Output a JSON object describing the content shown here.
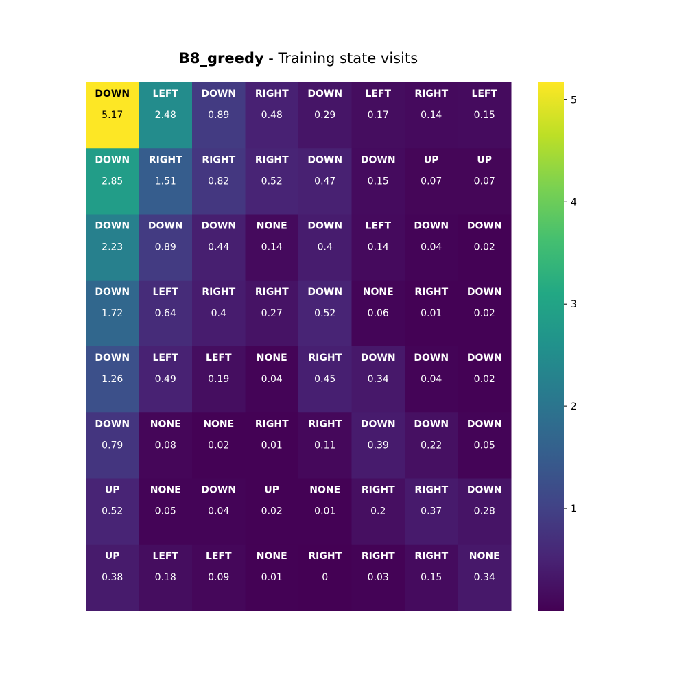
{
  "chart_data": {
    "type": "heatmap",
    "title_bold": "B8_greedy",
    "title_rest": " - Training state visits",
    "rows": 8,
    "cols": 8,
    "values": [
      [
        5.17,
        2.48,
        0.89,
        0.48,
        0.29,
        0.17,
        0.14,
        0.15
      ],
      [
        2.85,
        1.51,
        0.82,
        0.52,
        0.47,
        0.15,
        0.07,
        0.07
      ],
      [
        2.23,
        0.89,
        0.44,
        0.14,
        0.4,
        0.14,
        0.04,
        0.02
      ],
      [
        1.72,
        0.64,
        0.4,
        0.27,
        0.52,
        0.06,
        0.01,
        0.02
      ],
      [
        1.26,
        0.49,
        0.19,
        0.04,
        0.45,
        0.34,
        0.04,
        0.02
      ],
      [
        0.79,
        0.08,
        0.02,
        0.01,
        0.11,
        0.39,
        0.22,
        0.05
      ],
      [
        0.52,
        0.05,
        0.04,
        0.02,
        0.01,
        0.2,
        0.37,
        0.28
      ],
      [
        0.38,
        0.18,
        0.09,
        0.01,
        0,
        0.03,
        0.15,
        0.34
      ]
    ],
    "actions": [
      [
        "DOWN",
        "LEFT",
        "DOWN",
        "RIGHT",
        "DOWN",
        "LEFT",
        "RIGHT",
        "LEFT"
      ],
      [
        "DOWN",
        "RIGHT",
        "RIGHT",
        "RIGHT",
        "DOWN",
        "DOWN",
        "UP",
        "UP"
      ],
      [
        "DOWN",
        "DOWN",
        "DOWN",
        "NONE",
        "DOWN",
        "LEFT",
        "DOWN",
        "DOWN"
      ],
      [
        "DOWN",
        "LEFT",
        "RIGHT",
        "RIGHT",
        "DOWN",
        "NONE",
        "RIGHT",
        "DOWN"
      ],
      [
        "DOWN",
        "LEFT",
        "LEFT",
        "NONE",
        "RIGHT",
        "DOWN",
        "DOWN",
        "DOWN"
      ],
      [
        "DOWN",
        "NONE",
        "NONE",
        "RIGHT",
        "RIGHT",
        "DOWN",
        "DOWN",
        "DOWN"
      ],
      [
        "UP",
        "NONE",
        "DOWN",
        "UP",
        "NONE",
        "RIGHT",
        "RIGHT",
        "DOWN"
      ],
      [
        "UP",
        "LEFT",
        "LEFT",
        "NONE",
        "RIGHT",
        "RIGHT",
        "RIGHT",
        "NONE"
      ]
    ],
    "colorscale": "viridis",
    "color_range": [
      0,
      5.17
    ],
    "colorbar_ticks": [
      1,
      2,
      3,
      4,
      5
    ]
  }
}
